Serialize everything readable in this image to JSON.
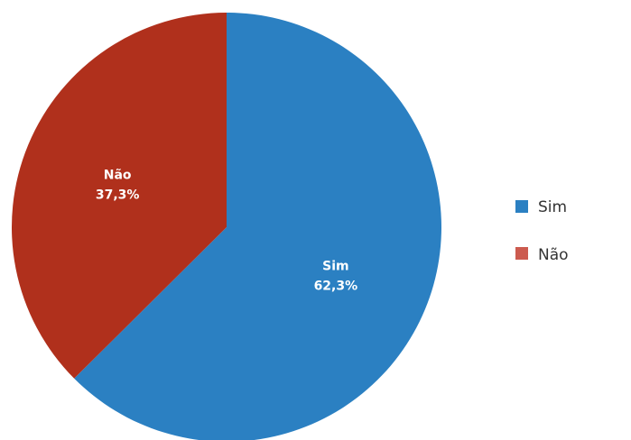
{
  "chart_data": {
    "type": "pie",
    "slices": [
      {
        "label": "Sim",
        "value": 62.3,
        "display": "62,3%",
        "color": "#2b80c2"
      },
      {
        "label": "Não",
        "value": 37.3,
        "display": "37,3%",
        "color": "#b0301c"
      }
    ],
    "legend": {
      "placement": "right",
      "items": [
        {
          "label": "Sim",
          "color": "#2b80c2"
        },
        {
          "label": "Não",
          "color": "#cc5b4f"
        }
      ]
    }
  }
}
